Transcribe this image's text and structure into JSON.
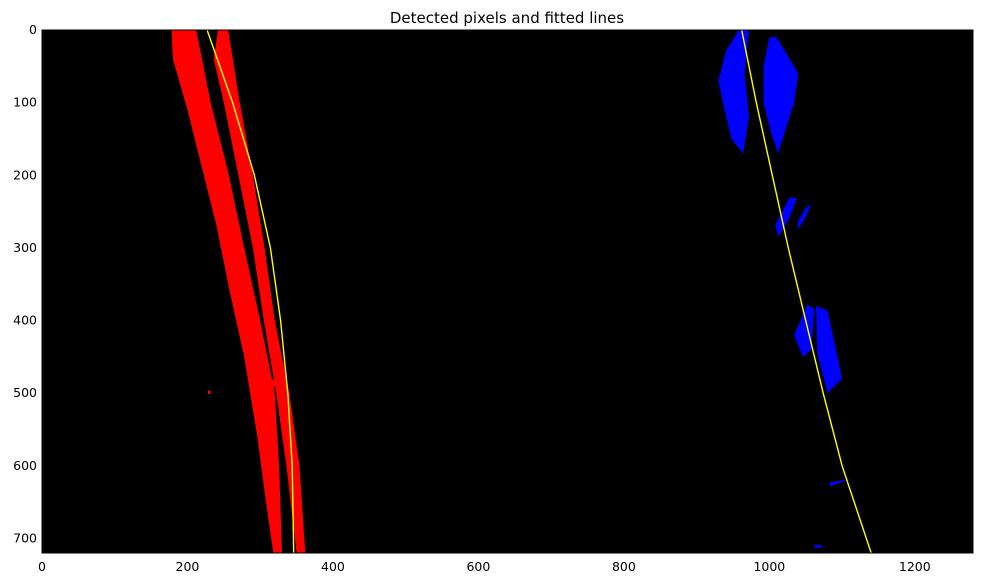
{
  "chart_data": {
    "type": "scatter",
    "title": "Detected pixels and fitted lines",
    "xlabel": "",
    "ylabel": "",
    "xlim": [
      0,
      1280
    ],
    "ylim": [
      720,
      0
    ],
    "x_ticks": [
      0,
      200,
      400,
      600,
      800,
      1000,
      1200
    ],
    "y_ticks": [
      0,
      100,
      200,
      300,
      400,
      500,
      600,
      700
    ],
    "background_color": "#000000",
    "grid": false,
    "legend": "none",
    "series": [
      {
        "kind": "pixels",
        "color": "#ff0000",
        "regions": [
          [
            [
              178,
              0
            ],
            [
              212,
              0
            ],
            [
              232,
              100
            ],
            [
              257,
              200
            ],
            [
              278,
              300
            ],
            [
              300,
              400
            ],
            [
              320,
              500
            ],
            [
              326,
              600
            ],
            [
              330,
              720
            ],
            [
              318,
              720
            ],
            [
              308,
              650
            ],
            [
              296,
              560
            ],
            [
              278,
              450
            ],
            [
              258,
              360
            ],
            [
              240,
              270
            ],
            [
              220,
              190
            ],
            [
              200,
              110
            ],
            [
              180,
              40
            ]
          ],
          [
            [
              242,
              0
            ],
            [
              256,
              0
            ],
            [
              272,
              100
            ],
            [
              290,
              200
            ],
            [
              306,
              300
            ],
            [
              320,
              400
            ],
            [
              340,
              500
            ],
            [
              354,
              600
            ],
            [
              362,
              720
            ],
            [
              350,
              720
            ],
            [
              336,
              600
            ],
            [
              322,
              500
            ],
            [
              305,
              400
            ],
            [
              290,
              300
            ],
            [
              270,
              200
            ],
            [
              250,
              100
            ],
            [
              236,
              40
            ]
          ],
          [
            [
              318,
              480
            ],
            [
              330,
              492
            ],
            [
              336,
              500
            ],
            [
              334,
              505
            ],
            [
              322,
              495
            ],
            [
              315,
              485
            ]
          ],
          [
            [
              228,
              497
            ],
            [
              232,
              497
            ],
            [
              232,
              501
            ],
            [
              228,
              501
            ]
          ]
        ]
      },
      {
        "kind": "pixels",
        "color": "#0000ff",
        "regions": [
          [
            [
              958,
              0
            ],
            [
              972,
              0
            ],
            [
              966,
              60
            ],
            [
              972,
              120
            ],
            [
              964,
              170
            ],
            [
              948,
              150
            ],
            [
              936,
              100
            ],
            [
              930,
              70
            ],
            [
              940,
              30
            ]
          ],
          [
            [
              1000,
              10
            ],
            [
              1010,
              10
            ],
            [
              1040,
              60
            ],
            [
              1034,
              100
            ],
            [
              1012,
              170
            ],
            [
              1002,
              140
            ],
            [
              992,
              100
            ],
            [
              992,
              50
            ]
          ],
          [
            [
              1028,
              230
            ],
            [
              1038,
              232
            ],
            [
              1026,
              262
            ],
            [
              1012,
              285
            ],
            [
              1008,
              268
            ]
          ],
          [
            [
              1050,
              245
            ],
            [
              1058,
              240
            ],
            [
              1046,
              265
            ],
            [
              1038,
              275
            ],
            [
              1040,
              262
            ]
          ],
          [
            [
              1052,
              378
            ],
            [
              1062,
              384
            ],
            [
              1058,
              440
            ],
            [
              1046,
              450
            ],
            [
              1034,
              420
            ]
          ],
          [
            [
              1064,
              380
            ],
            [
              1080,
              386
            ],
            [
              1100,
              480
            ],
            [
              1080,
              500
            ],
            [
              1066,
              445
            ]
          ],
          [
            [
              1082,
              623
            ],
            [
              1112,
              618
            ],
            [
              1084,
              628
            ]
          ],
          [
            [
              1062,
              709
            ],
            [
              1072,
              709
            ],
            [
              1072,
              713
            ],
            [
              1062,
              713
            ]
          ]
        ]
      }
    ],
    "fitted_lines": [
      {
        "color": "#ffff00",
        "points": [
          [
            227,
            0
          ],
          [
            262,
            100
          ],
          [
            292,
            200
          ],
          [
            314,
            300
          ],
          [
            328,
            400
          ],
          [
            338,
            500
          ],
          [
            344,
            600
          ],
          [
            346,
            720
          ]
        ]
      },
      {
        "color": "#ffff00",
        "points": [
          [
            962,
            0
          ],
          [
            982,
            100
          ],
          [
            1004,
            200
          ],
          [
            1026,
            300
          ],
          [
            1050,
            400
          ],
          [
            1074,
            500
          ],
          [
            1100,
            600
          ],
          [
            1140,
            720
          ]
        ]
      }
    ]
  }
}
